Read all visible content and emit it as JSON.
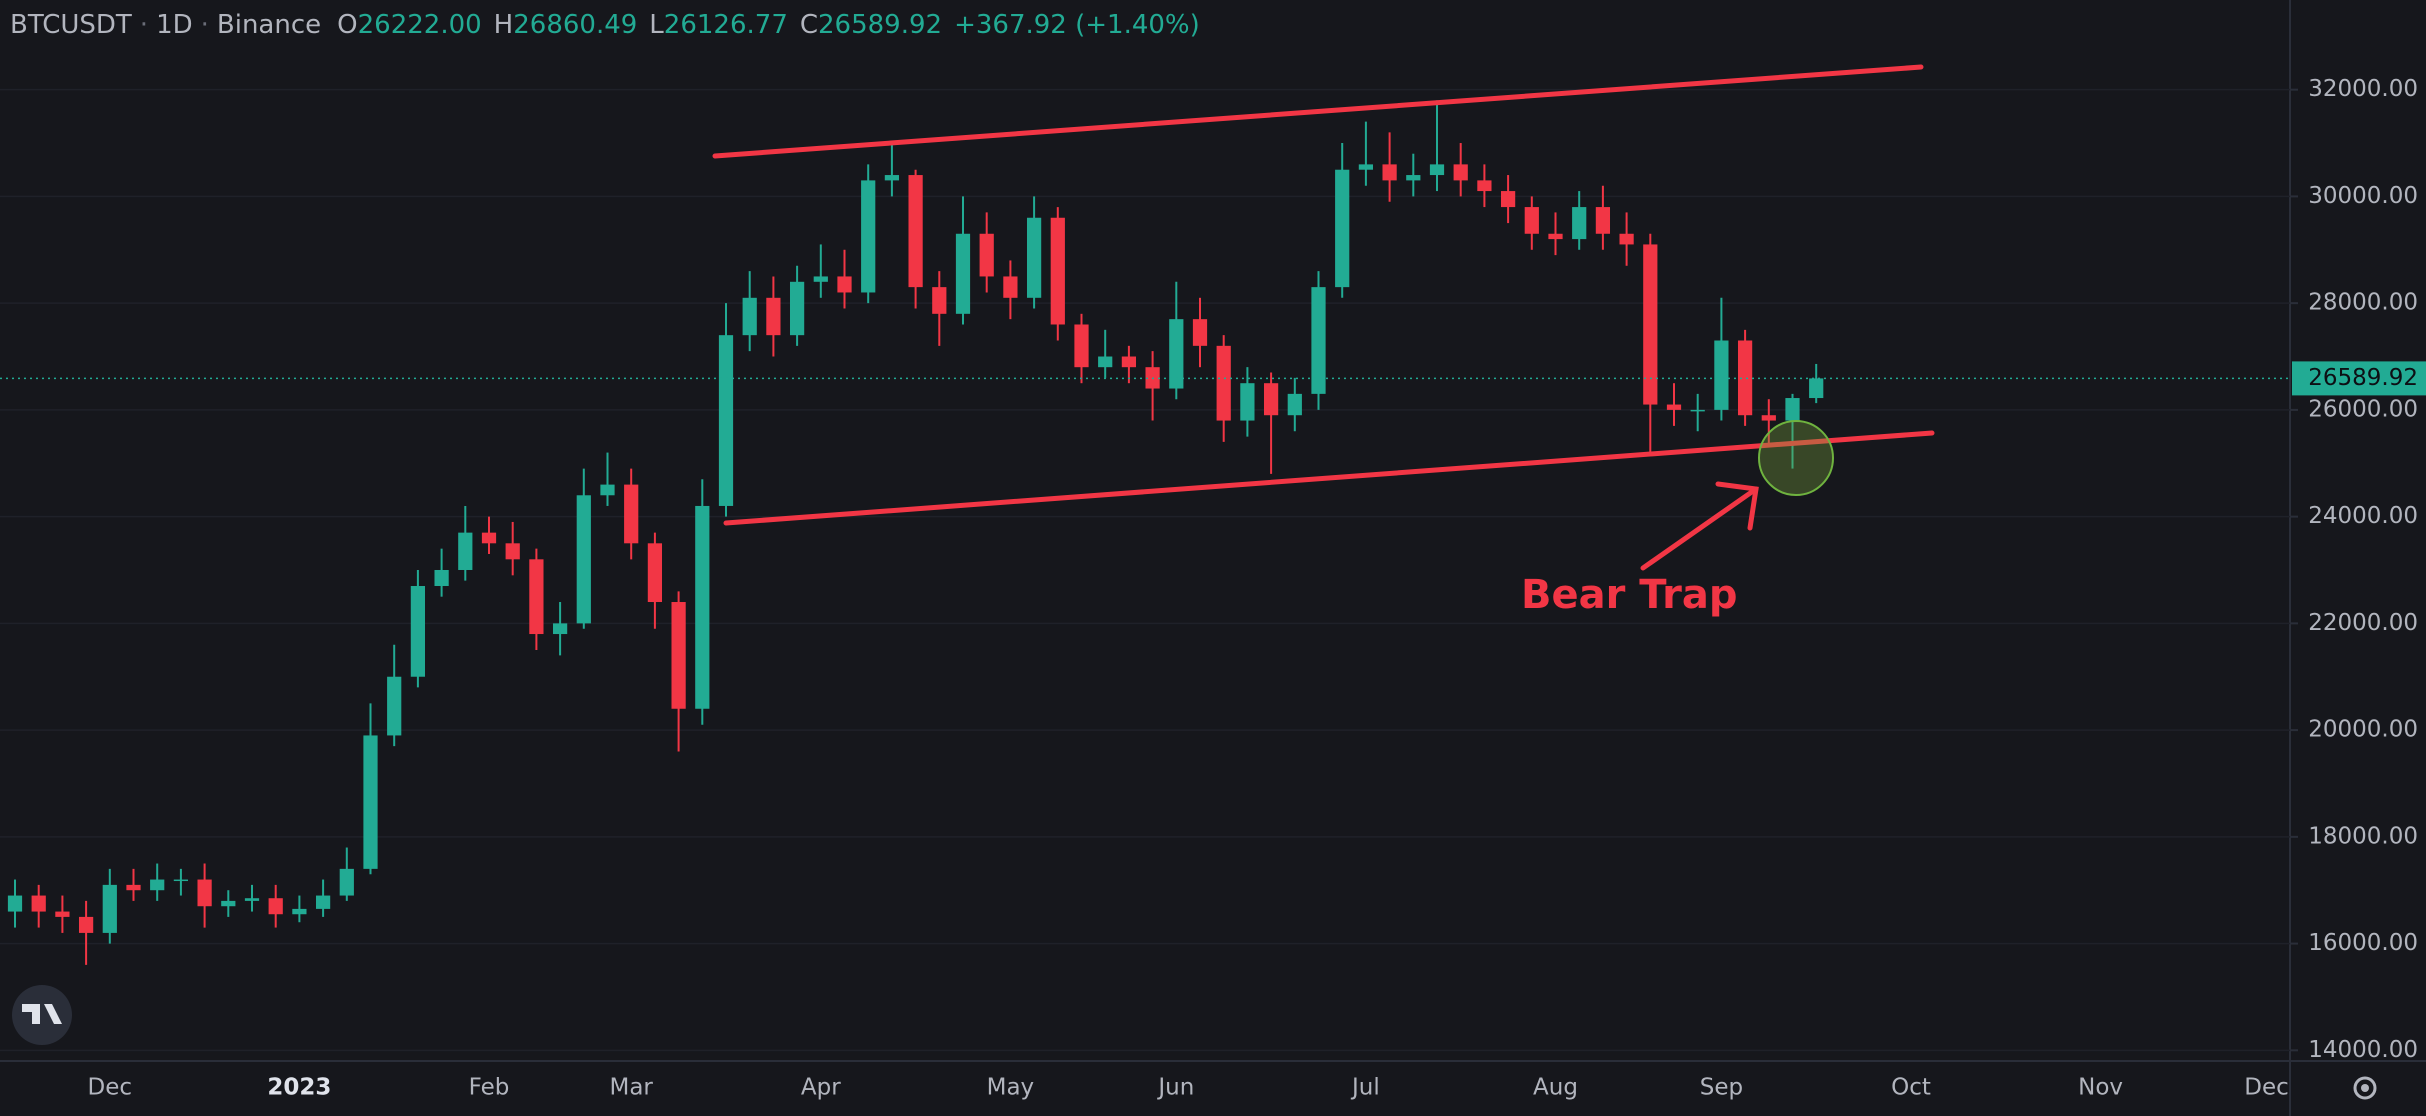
{
  "header": {
    "symbol": "BTCUSDT",
    "interval": "1D",
    "exchange": "Binance",
    "open_label": "O",
    "open": "26222.00",
    "high_label": "H",
    "high": "26860.49",
    "low_label": "L",
    "low": "26126.77",
    "close_label": "C",
    "close": "26589.92",
    "change": "+367.92 (+1.40%)"
  },
  "chart_data": {
    "type": "candlestick",
    "categories": [
      null,
      null,
      null,
      null,
      "Dec",
      null,
      null,
      null,
      null,
      null,
      null,
      null,
      "2023",
      null,
      null,
      null,
      null,
      null,
      null,
      null,
      "Feb",
      null,
      null,
      null,
      null,
      null,
      "Mar",
      null,
      null,
      null,
      null,
      null,
      null,
      null,
      "Apr",
      null,
      null,
      null,
      null,
      null,
      null,
      null,
      "May",
      null,
      null,
      null,
      null,
      null,
      null,
      "Jun",
      null,
      null,
      null,
      null,
      null,
      null,
      null,
      "Jul",
      null,
      null,
      null,
      null,
      null,
      null,
      null,
      "Aug",
      null,
      null,
      null,
      null,
      null,
      null,
      "Sep",
      null,
      null,
      null,
      null,
      null,
      null,
      null,
      "Oct",
      null,
      null,
      null,
      null,
      null,
      null,
      null,
      "Nov",
      null,
      null,
      null,
      null,
      null,
      null,
      "Dec",
      null
    ],
    "open": [
      16600,
      16900,
      16600,
      16500,
      16200,
      17100,
      17000,
      17200,
      17200,
      16700,
      16800,
      16850,
      16550,
      16650,
      16900,
      17400,
      19900,
      21000,
      22700,
      23000,
      23700,
      23500,
      23200,
      21800,
      22000,
      24400,
      24600,
      23500,
      22400,
      20400,
      24200,
      27400,
      28100,
      27400,
      28400,
      28500,
      28200,
      30300,
      30400,
      28300,
      27800,
      29300,
      28500,
      28100,
      29600,
      27600,
      26800,
      27000,
      26800,
      26400,
      27700,
      27200,
      25800,
      26500,
      25900,
      26300,
      28300,
      30500,
      30600,
      30300,
      30400,
      30600,
      30300,
      30100,
      29800,
      29300,
      29200,
      29800,
      29300,
      29100,
      26100,
      26000,
      26000,
      27300,
      25900,
      25800,
      26222,
      null,
      null,
      null,
      null,
      null,
      null,
      null,
      null,
      null,
      null,
      null,
      null,
      null,
      null,
      null,
      null,
      null,
      null,
      null,
      null
    ],
    "high": [
      17200,
      17100,
      16900,
      16800,
      17400,
      17400,
      17500,
      17400,
      17500,
      17000,
      17100,
      17100,
      16900,
      17200,
      17800,
      20500,
      21600,
      23000,
      23400,
      24200,
      24000,
      23900,
      23400,
      22400,
      24900,
      25200,
      24900,
      23700,
      22600,
      24700,
      28000,
      28600,
      28500,
      28700,
      29100,
      29000,
      30600,
      31000,
      30500,
      28600,
      30000,
      29700,
      28800,
      30000,
      29800,
      27800,
      27500,
      27200,
      27100,
      28400,
      28100,
      27400,
      26800,
      26700,
      26600,
      28600,
      31000,
      31400,
      31200,
      30800,
      31800,
      31000,
      30600,
      30400,
      30000,
      29700,
      30100,
      30200,
      29700,
      29300,
      26500,
      26300,
      28100,
      27500,
      26200,
      26300,
      26860.49,
      null,
      null,
      null,
      null,
      null,
      null,
      null,
      null,
      null,
      null,
      null,
      null,
      null,
      null,
      null,
      null,
      null,
      null,
      null,
      null
    ],
    "low": [
      16300,
      16300,
      16200,
      15600,
      16000,
      16800,
      16800,
      16900,
      16300,
      16500,
      16600,
      16300,
      16400,
      16500,
      16800,
      17300,
      19700,
      20800,
      22500,
      22800,
      23300,
      22900,
      21500,
      21400,
      21900,
      24200,
      23200,
      21900,
      19600,
      20100,
      24000,
      27100,
      27000,
      27200,
      28100,
      27900,
      28000,
      30000,
      27900,
      27200,
      27600,
      28200,
      27700,
      27900,
      27300,
      26500,
      26600,
      26500,
      25800,
      26200,
      26800,
      25400,
      25500,
      24800,
      25600,
      26000,
      28100,
      30200,
      29900,
      30000,
      30100,
      30000,
      29800,
      29500,
      29000,
      28900,
      29000,
      29000,
      28700,
      25200,
      25700,
      25600,
      25800,
      25700,
      25300,
      24900,
      26126.77,
      null,
      null,
      null,
      null,
      null,
      null,
      null,
      null,
      null,
      null,
      null,
      null,
      null,
      null,
      null,
      null,
      null,
      null,
      null,
      null
    ],
    "close": [
      16900,
      16600,
      16500,
      16200,
      17100,
      17000,
      17200,
      17200,
      16700,
      16800,
      16850,
      16550,
      16650,
      16900,
      17400,
      19900,
      21000,
      22700,
      23000,
      23700,
      23500,
      23200,
      21800,
      22000,
      24400,
      24600,
      23500,
      22400,
      20400,
      24200,
      27400,
      28100,
      27400,
      28400,
      28500,
      28200,
      30300,
      30400,
      28300,
      27800,
      29300,
      28500,
      28100,
      29600,
      27600,
      26800,
      27000,
      26800,
      26400,
      27700,
      27200,
      25800,
      26500,
      25900,
      26300,
      28300,
      30500,
      30600,
      30300,
      30400,
      30600,
      30300,
      30100,
      29800,
      29300,
      29200,
      29800,
      29300,
      29100,
      26100,
      26000,
      26000,
      27300,
      25900,
      25800,
      26222,
      26589.92,
      null,
      null,
      null,
      null,
      null,
      null,
      null,
      null,
      null,
      null,
      null,
      null,
      null,
      null,
      null,
      null,
      null,
      null,
      null,
      null
    ],
    "up_color": "#22ab94",
    "down_color": "#f23645",
    "ylim": [
      13800,
      33680
    ],
    "yticks": [
      {
        "value": 14000,
        "label": "14000.00"
      },
      {
        "value": 16000,
        "label": "16000.00"
      },
      {
        "value": 18000,
        "label": "18000.00"
      },
      {
        "value": 20000,
        "label": "20000.00"
      },
      {
        "value": 22000,
        "label": "22000.00"
      },
      {
        "value": 24000,
        "label": "24000.00"
      },
      {
        "value": 26000,
        "label": "26000.00"
      },
      {
        "value": 28000,
        "label": "28000.00"
      },
      {
        "value": 30000,
        "label": "30000.00"
      },
      {
        "value": 32000,
        "label": "32000.00"
      }
    ],
    "grid": true,
    "annotation": "Bear Trap"
  }
}
